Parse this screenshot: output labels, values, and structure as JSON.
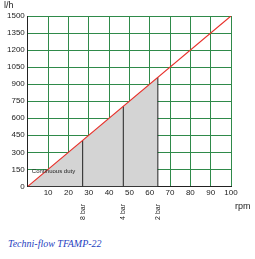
{
  "chart_data": {
    "type": "line",
    "title": "Techni-flow TFAMP-22",
    "x_label": "rpm",
    "y_label": "l/h",
    "x": [
      0,
      100
    ],
    "values": [
      0,
      1500
    ],
    "color": "#e8302a",
    "xlim": [
      0,
      100
    ],
    "xticks": [
      10,
      20,
      30,
      40,
      50,
      60,
      70,
      80,
      90,
      100
    ],
    "ylim": [
      0,
      1500
    ],
    "yticks": [
      0,
      150,
      300,
      450,
      600,
      750,
      900,
      1050,
      1200,
      1350,
      1500
    ],
    "grid": true,
    "shaded_area": {
      "label": "Continuous duty",
      "x": [
        0,
        64
      ],
      "values": [
        0,
        960
      ],
      "color": "#d4d4d4"
    },
    "pressure_limits": [
      {
        "label": "8 bar",
        "x": 27,
        "y": 405
      },
      {
        "label": "4 bar",
        "x": 47,
        "y": 705
      },
      {
        "label": "2 bar",
        "x": 64,
        "y": 960
      }
    ]
  }
}
